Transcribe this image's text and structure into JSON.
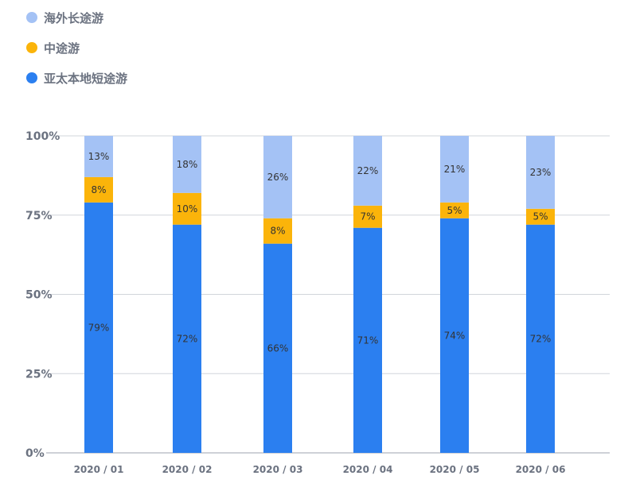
{
  "chart_data": {
    "type": "bar",
    "stacked": true,
    "percent": true,
    "categories": [
      "2020 / 01",
      "2020 / 02",
      "2020 / 03",
      "2020 / 04",
      "2020 / 05",
      "2020 / 06"
    ],
    "series": [
      {
        "name": "亚太本地短途游",
        "color": "#2b7ff0",
        "values": [
          79,
          72,
          66,
          71,
          74,
          72
        ],
        "labels": [
          "79%",
          "72%",
          "66%",
          "71%",
          "74%",
          "72%"
        ]
      },
      {
        "name": "中途游",
        "color": "#fbb40a",
        "values": [
          8,
          10,
          8,
          7,
          5,
          5
        ],
        "labels": [
          "8%",
          "10%",
          "8%",
          "7%",
          "5%",
          "5%"
        ]
      },
      {
        "name": "海外长途游",
        "color": "#a4c2f5",
        "values": [
          13,
          18,
          26,
          22,
          21,
          23
        ],
        "labels": [
          "13%",
          "18%",
          "26%",
          "22%",
          "21%",
          "23%"
        ]
      }
    ],
    "y_ticks": [
      "0%",
      "25%",
      "50%",
      "75%",
      "100%"
    ],
    "ylim": [
      0,
      100
    ],
    "grid": true,
    "legend_position": "top-left"
  },
  "legend": [
    {
      "label": "海外长途游",
      "color": "#a4c2f5"
    },
    {
      "label": "中途游",
      "color": "#fbb40a"
    },
    {
      "label": "亚太本地短途游",
      "color": "#2b7ff0"
    }
  ]
}
